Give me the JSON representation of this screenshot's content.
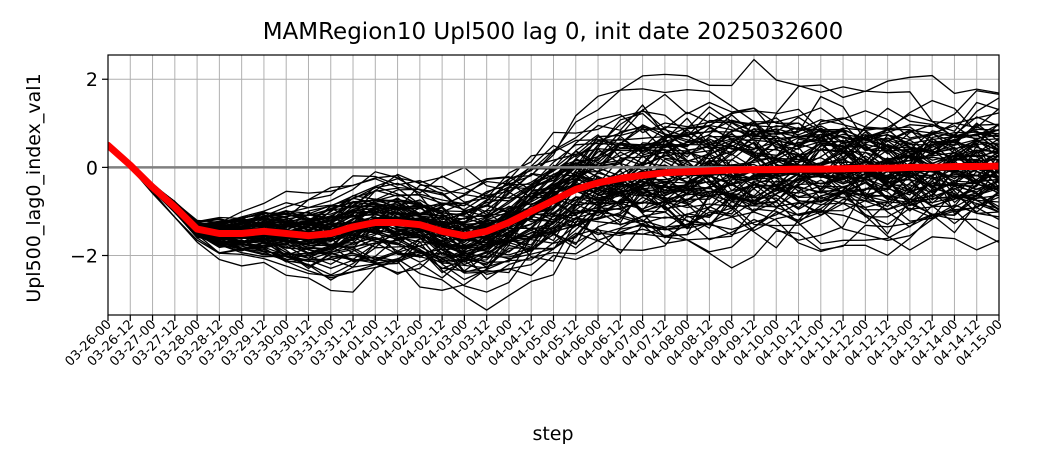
{
  "chart_data": {
    "type": "line",
    "title": "MAMRegion10 Upl500 lag 0, init date 2025032600",
    "xlabel": "step",
    "ylabel": "Upl500_lag0_index_val1",
    "ylim": [
      -3.35,
      2.55
    ],
    "yticks": [
      -2,
      0,
      2
    ],
    "ytick_labels": [
      "−2",
      "0",
      "2"
    ],
    "grid": true,
    "x": [
      "03-26-00",
      "03-26-12",
      "03-27-00",
      "03-27-12",
      "03-28-00",
      "03-28-12",
      "03-29-00",
      "03-29-12",
      "03-30-00",
      "03-30-12",
      "03-31-00",
      "03-31-12",
      "04-01-00",
      "04-01-12",
      "04-02-00",
      "04-02-12",
      "04-03-00",
      "04-03-12",
      "04-04-00",
      "04-04-12",
      "04-05-00",
      "04-05-12",
      "04-06-00",
      "04-06-12",
      "04-07-00",
      "04-07-12",
      "04-08-00",
      "04-08-12",
      "04-09-00",
      "04-09-12",
      "04-10-00",
      "04-10-12",
      "04-11-00",
      "04-11-12",
      "04-12-00",
      "04-12-12",
      "04-13-00",
      "04-13-12",
      "04-14-00",
      "04-14-12",
      "04-15-00"
    ],
    "reference_line": {
      "y": 0,
      "color": "#808080"
    },
    "mean_series": {
      "color": "#ff0000",
      "values": [
        0.5,
        0.05,
        -0.45,
        -0.9,
        -1.4,
        -1.5,
        -1.5,
        -1.45,
        -1.5,
        -1.55,
        -1.5,
        -1.35,
        -1.25,
        -1.25,
        -1.3,
        -1.45,
        -1.55,
        -1.45,
        -1.25,
        -1.0,
        -0.75,
        -0.5,
        -0.35,
        -0.25,
        -0.18,
        -0.12,
        -0.1,
        -0.08,
        -0.06,
        -0.05,
        -0.05,
        -0.04,
        -0.04,
        -0.03,
        -0.02,
        -0.02,
        0.0,
        0.0,
        0.02,
        0.02,
        0.03
      ]
    },
    "ensemble": {
      "color": "#000000",
      "members": 100,
      "spread": [
        0.0,
        0.03,
        0.06,
        0.1,
        0.12,
        0.25,
        0.3,
        0.38,
        0.45,
        0.5,
        0.55,
        0.58,
        0.62,
        0.65,
        0.68,
        0.7,
        0.72,
        0.75,
        0.78,
        0.82,
        0.85,
        0.88,
        0.9,
        0.92,
        0.95,
        0.95,
        0.95,
        0.95,
        0.95,
        0.95,
        0.95,
        0.95,
        0.95,
        0.95,
        0.95,
        0.95,
        0.95,
        0.95,
        0.95,
        0.95,
        0.95
      ]
    }
  }
}
